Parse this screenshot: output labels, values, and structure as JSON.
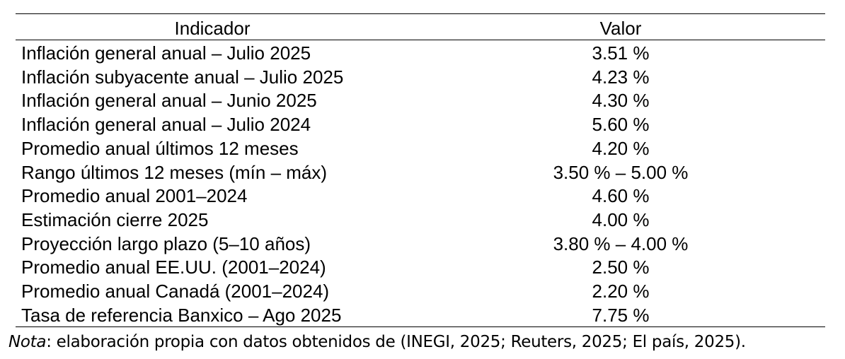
{
  "table": {
    "header": [
      "Indicador",
      "Valor"
    ],
    "rows": [
      [
        "Inflación general anual – Julio 2025",
        "3.51 %"
      ],
      [
        "Inflación subyacente anual – Julio 2025",
        "4.23 %"
      ],
      [
        "Inflación general anual – Junio 2025",
        "4.30 %"
      ],
      [
        "Inflación general anual – Julio 2024",
        "5.60 %"
      ],
      [
        "Promedio anual últimos 12 meses",
        "4.20 %"
      ],
      [
        "Rango últimos 12 meses (mín – máx)",
        "3.50 % – 5.00 %"
      ],
      [
        "Promedio anual 2001–2024",
        "4.60 %"
      ],
      [
        "Estimación cierre 2025",
        "4.00 %"
      ],
      [
        "Proyección largo plazo (5–10 años)",
        "3.80 % – 4.00 %"
      ],
      [
        "Promedio anual EE.UU. (2001–2024)",
        "2.50 %"
      ],
      [
        "Promedio anual Canadá (2001–2024)",
        "2.20 %"
      ],
      [
        "Tasa de referencia Banxico – Ago 2025",
        "7.75 %"
      ]
    ]
  },
  "note": {
    "label": "Nota",
    "text": ": elaboración propia con datos obtenidos de (INEGI, 2025; Reuters, 2025; El país, 2025)."
  }
}
